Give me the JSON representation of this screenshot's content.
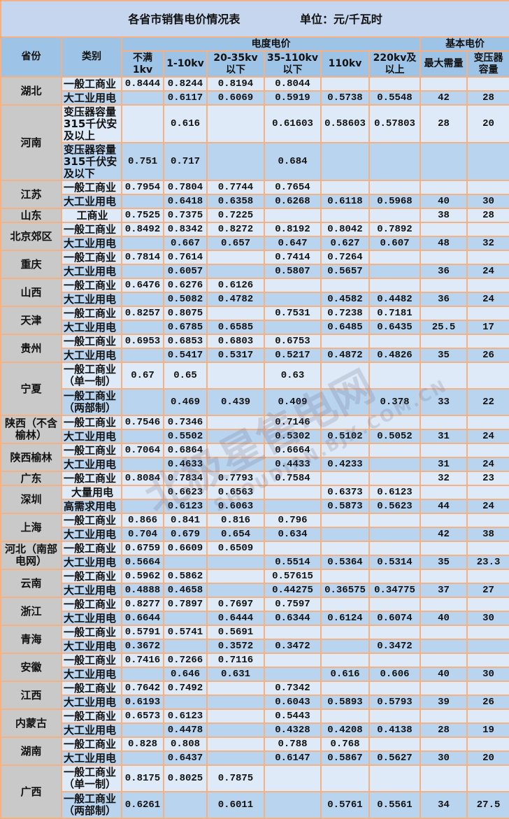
{
  "title": "各省市销售电价情况表",
  "unit": "单位：元/千瓦时",
  "headers": {
    "province": "省份",
    "category": "类别",
    "energy_price": "电度电价",
    "basic_price": "基本电价",
    "energy_cols": [
      "不满\n1kv",
      "1-10kv",
      "20-35kv\n以下",
      "35-110kv\n以下",
      "110kv",
      "220kv及\n以上"
    ],
    "basic_cols": [
      "最大需量",
      "变压器\n容量"
    ]
  },
  "groups": [
    {
      "province": "湖北",
      "rows": [
        {
          "category": "一般工商业",
          "values": [
            "0.8444",
            "0.8244",
            "0.8194",
            "0.8044",
            "",
            "",
            "",
            ""
          ]
        },
        {
          "category": "大工业用电",
          "values": [
            "",
            "0.6117",
            "0.6069",
            "0.5919",
            "0.5738",
            "0.5548",
            "42",
            "28"
          ]
        }
      ]
    },
    {
      "province": "河南",
      "tall": "xl",
      "rows": [
        {
          "category": "变压器容量\n315千伏安\n及以上",
          "values": [
            "",
            "0.616",
            "",
            "0.61603",
            "0.58603",
            "0.57803",
            "28",
            "20"
          ]
        },
        {
          "category": "变压器容量\n315千伏安\n及以下",
          "values": [
            "0.751",
            "0.717",
            "",
            "0.684",
            "",
            "",
            "",
            ""
          ]
        }
      ]
    },
    {
      "province": "江苏",
      "rows": [
        {
          "category": "一般工商业",
          "values": [
            "0.7954",
            "0.7804",
            "0.7744",
            "0.7654",
            "",
            "",
            "",
            ""
          ]
        },
        {
          "category": "大工业用电",
          "values": [
            "",
            "0.6418",
            "0.6358",
            "0.6268",
            "0.6118",
            "0.5968",
            "40",
            "30"
          ]
        }
      ]
    },
    {
      "province": "山东",
      "rows": [
        {
          "category": "工商业",
          "values": [
            "0.7525",
            "0.7375",
            "0.7225",
            "",
            "",
            "",
            "38",
            "28"
          ]
        }
      ]
    },
    {
      "province": "北京郊区",
      "rows": [
        {
          "category": "一般工商业",
          "values": [
            "0.8492",
            "0.8342",
            "0.8272",
            "0.8192",
            "0.8042",
            "0.7892",
            "",
            ""
          ]
        },
        {
          "category": "大工业用电",
          "values": [
            "",
            "0.667",
            "0.657",
            "0.647",
            "0.627",
            "0.607",
            "48",
            "32"
          ]
        }
      ]
    },
    {
      "province": "重庆",
      "rows": [
        {
          "category": "一般工商业",
          "values": [
            "0.7814",
            "0.7614",
            "",
            "0.7414",
            "0.7264",
            "",
            "",
            ""
          ]
        },
        {
          "category": "大工业用电",
          "values": [
            "",
            "0.6057",
            "",
            "0.5807",
            "0.5657",
            "",
            "36",
            "24"
          ]
        }
      ]
    },
    {
      "province": "山西",
      "rows": [
        {
          "category": "一般工商业",
          "values": [
            "0.6476",
            "0.6276",
            "0.6126",
            "",
            "",
            "",
            "",
            ""
          ]
        },
        {
          "category": "大工业用电",
          "values": [
            "",
            "0.5082",
            "0.4782",
            "",
            "0.4582",
            "0.4482",
            "36",
            "24"
          ]
        }
      ]
    },
    {
      "province": "天津",
      "rows": [
        {
          "category": "一般工商业",
          "values": [
            "0.8257",
            "0.8075",
            "",
            "0.7531",
            "0.7238",
            "0.7181",
            "",
            ""
          ]
        },
        {
          "category": "大工业用电",
          "values": [
            "",
            "0.6785",
            "0.6585",
            "",
            "0.6485",
            "0.6435",
            "25.5",
            "17"
          ]
        }
      ]
    },
    {
      "province": "贵州",
      "rows": [
        {
          "category": "一般工商业",
          "values": [
            "0.6953",
            "0.6853",
            "0.6803",
            "0.6753",
            "",
            "",
            "",
            ""
          ]
        },
        {
          "category": "大工业用电",
          "values": [
            "",
            "0.5417",
            "0.5317",
            "0.5217",
            "0.4872",
            "0.4826",
            "35",
            "26"
          ]
        }
      ]
    },
    {
      "province": "宁夏",
      "tall": "md",
      "rows": [
        {
          "category": "一般工商业\n（单一制）",
          "values": [
            "0.67",
            "0.65",
            "",
            "0.63",
            "",
            "",
            "",
            ""
          ]
        },
        {
          "category": "一般工商业\n（两部制）",
          "values": [
            "",
            "0.469",
            "0.439",
            "0.409",
            "",
            "0.378",
            "33",
            "22"
          ]
        }
      ]
    },
    {
      "province": "陕西（不含\n榆林）",
      "rows": [
        {
          "category": "一般工商业",
          "values": [
            "0.7546",
            "0.7346",
            "",
            "0.7146",
            "",
            "",
            "",
            ""
          ]
        },
        {
          "category": "大工业用电",
          "values": [
            "",
            "0.5502",
            "",
            "0.5302",
            "0.5102",
            "0.5052",
            "31",
            "24"
          ]
        }
      ]
    },
    {
      "province": "陕西榆林",
      "rows": [
        {
          "category": "一般工商业",
          "values": [
            "0.7064",
            "0.6864",
            "",
            "0.6664",
            "",
            "",
            "",
            ""
          ]
        },
        {
          "category": "大工业用电",
          "values": [
            "",
            "0.4633",
            "",
            "0.4433",
            "0.4233",
            "",
            "31",
            "24"
          ]
        }
      ]
    },
    {
      "province": "广东",
      "rows": [
        {
          "category": "一般工商业",
          "values": [
            "0.8084",
            "0.7834",
            "0.7793",
            "0.7584",
            "",
            "",
            "32",
            "23"
          ]
        }
      ]
    },
    {
      "province": "深圳",
      "rows": [
        {
          "category": "大量用电",
          "values": [
            "",
            "0.6623",
            "0.6563",
            "",
            "0.6373",
            "0.6123",
            "",
            ""
          ]
        },
        {
          "category": "高需求用电",
          "values": [
            "",
            "0.6123",
            "0.6063",
            "",
            "0.5873",
            "0.5623",
            "44",
            "24"
          ]
        }
      ]
    },
    {
      "province": "上海",
      "rows": [
        {
          "category": "一般工商业",
          "values": [
            "0.866",
            "0.841",
            "0.816",
            "0.796",
            "",
            "",
            "",
            ""
          ]
        },
        {
          "category": "大工业用电",
          "values": [
            "0.704",
            "0.679",
            "0.654",
            "0.634",
            "",
            "",
            "42",
            "38"
          ]
        }
      ]
    },
    {
      "province": "河北（南部\n电网）",
      "rows": [
        {
          "category": "一般工商业",
          "values": [
            "0.6759",
            "0.6609",
            "0.6509",
            "",
            "",
            "",
            "",
            ""
          ]
        },
        {
          "category": "大工业用电",
          "values": [
            "0.5664",
            "",
            "",
            "0.5514",
            "0.5364",
            "0.5314",
            "35",
            "23.3"
          ]
        }
      ]
    },
    {
      "province": "云南",
      "rows": [
        {
          "category": "一般工商业",
          "values": [
            "0.5962",
            "0.5862",
            "",
            "0.57615",
            "",
            "",
            "",
            ""
          ]
        },
        {
          "category": "大工业用电",
          "values": [
            "0.4888",
            "0.4658",
            "",
            "0.44275",
            "0.36575",
            "0.34775",
            "37",
            "27"
          ]
        }
      ]
    },
    {
      "province": "浙江",
      "rows": [
        {
          "category": "一般工商业",
          "values": [
            "0.8277",
            "0.7897",
            "0.7697",
            "0.7597",
            "",
            "",
            "",
            ""
          ]
        },
        {
          "category": "大工业用电",
          "values": [
            "0.6644",
            "",
            "0.6444",
            "0.6344",
            "0.6124",
            "0.6074",
            "40",
            "30"
          ]
        }
      ]
    },
    {
      "province": "青海",
      "rows": [
        {
          "category": "一般工商业",
          "values": [
            "0.5791",
            "0.5741",
            "0.5691",
            "",
            "",
            "",
            "",
            ""
          ]
        },
        {
          "category": "大工业用电",
          "values": [
            "0.3672",
            "",
            "0.3572",
            "0.3472",
            "",
            "0.3472",
            "",
            ""
          ]
        }
      ]
    },
    {
      "province": "安徽",
      "rows": [
        {
          "category": "一般工商业",
          "values": [
            "0.7416",
            "0.7266",
            "0.7116",
            "",
            "",
            "",
            "",
            ""
          ]
        },
        {
          "category": "大工业用电",
          "values": [
            "",
            "0.646",
            "0.631",
            "",
            "0.616",
            "0.606",
            "40",
            "30"
          ]
        }
      ]
    },
    {
      "province": "江西",
      "rows": [
        {
          "category": "一般工商业",
          "values": [
            "0.7642",
            "0.7492",
            "",
            "0.7342",
            "",
            "",
            "",
            ""
          ]
        },
        {
          "category": "大工业用电",
          "values": [
            "0.6193",
            "",
            "",
            "0.6043",
            "0.5893",
            "0.5793",
            "39",
            "26"
          ]
        }
      ]
    },
    {
      "province": "内蒙古",
      "rows": [
        {
          "category": "一般工商业",
          "values": [
            "0.6573",
            "0.6123",
            "",
            "0.5443",
            "",
            "",
            "",
            ""
          ]
        },
        {
          "category": "大工业用电",
          "values": [
            "",
            "0.4478",
            "",
            "0.4328",
            "0.4208",
            "0.4138",
            "28",
            "19"
          ]
        }
      ]
    },
    {
      "province": "湖南",
      "rows": [
        {
          "category": "一般工商业",
          "values": [
            "0.828",
            "0.808",
            "",
            "0.788",
            "0.768",
            "",
            "",
            ""
          ]
        },
        {
          "category": "大工业用电",
          "values": [
            "",
            "0.6437",
            "",
            "0.6147",
            "0.5867",
            "0.5627",
            "30",
            "20"
          ]
        }
      ]
    },
    {
      "province": "广西",
      "tall": "md",
      "rows": [
        {
          "category": "一般工商业\n（单一制）",
          "values": [
            "0.8175",
            "0.8025",
            "0.7875",
            "",
            "",
            "",
            "",
            ""
          ]
        },
        {
          "category": "一般工商业\n（两部制）",
          "values": [
            "0.6261",
            "",
            "0.6011",
            "",
            "0.5761",
            "0.5561",
            "34",
            "27.5"
          ]
        }
      ]
    }
  ],
  "watermark": {
    "text": "北极星售电网",
    "subtext": "SHOUDIAN.BJX.COM.CN"
  }
}
